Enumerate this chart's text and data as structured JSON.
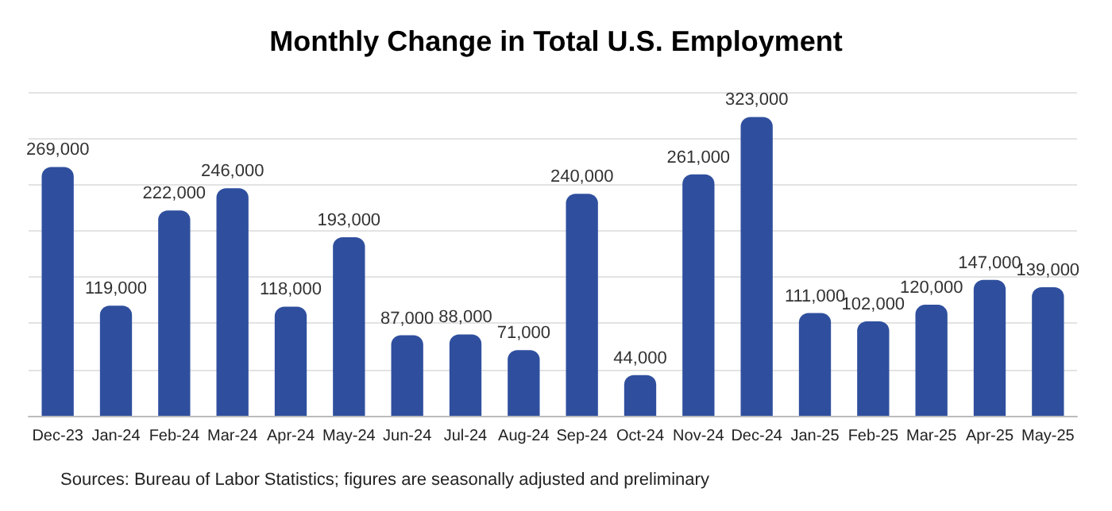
{
  "chart_data": {
    "type": "bar",
    "title": "Monthly Change in Total U.S. Employment",
    "categories": [
      "Dec-23",
      "Jan-24",
      "Feb-24",
      "Mar-24",
      "Apr-24",
      "May-24",
      "Jun-24",
      "Jul-24",
      "Aug-24",
      "Sep-24",
      "Oct-24",
      "Nov-24",
      "Dec-24",
      "Jan-25",
      "Feb-25",
      "Mar-25",
      "Apr-25",
      "May-25"
    ],
    "values": [
      269000,
      119000,
      222000,
      246000,
      118000,
      193000,
      87000,
      88000,
      71000,
      240000,
      44000,
      261000,
      323000,
      111000,
      102000,
      120000,
      147000,
      139000
    ],
    "value_labels": [
      "269,000",
      "119,000",
      "222,000",
      "246,000",
      "118,000",
      "193,000",
      "87,000",
      "88,000",
      "71,000",
      "240,000",
      "44,000",
      "261,000",
      "323,000",
      "111,000",
      "102,000",
      "120,000",
      "147,000",
      "139,000"
    ],
    "color": "#2f4f9e",
    "grid": "y",
    "tick_labels": "x",
    "annotations": [
      "Sources: Bureau of Labor Statistics; figures are seasonally adjusted and preliminary"
    ]
  }
}
